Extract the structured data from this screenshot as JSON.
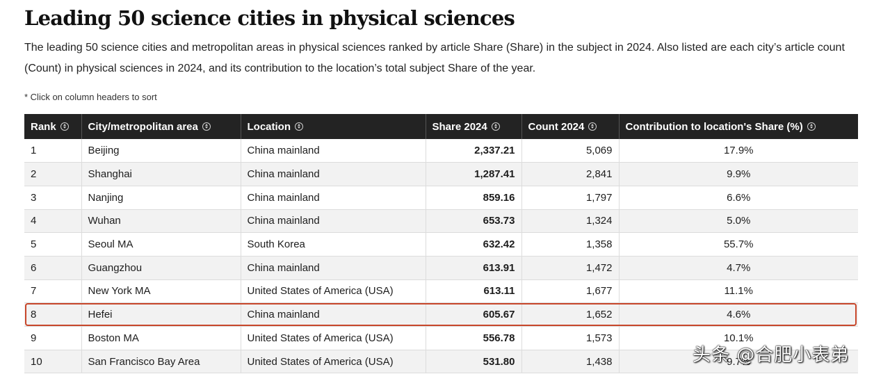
{
  "title": "Leading 50 science cities in physical sciences",
  "description": "The leading 50 science cities and metropolitan areas in physical sciences ranked by article Share (Share) in the subject in 2024. Also listed are each city’s article count (Count) in physical sciences in 2024, and its contribution to the location’s total subject Share of the year.",
  "note": "* Click on column headers to sort",
  "table": {
    "headers": [
      "Rank",
      "City/metropolitan area",
      "Location",
      "Share 2024",
      "Count 2024",
      "Contribution to location's Share (%)"
    ],
    "rows": [
      {
        "rank": "1",
        "city": "Beijing",
        "location": "China mainland",
        "share": "2,337.21",
        "count": "5,069",
        "contribution": "17.9%"
      },
      {
        "rank": "2",
        "city": "Shanghai",
        "location": "China mainland",
        "share": "1,287.41",
        "count": "2,841",
        "contribution": "9.9%"
      },
      {
        "rank": "3",
        "city": "Nanjing",
        "location": "China mainland",
        "share": "859.16",
        "count": "1,797",
        "contribution": "6.6%"
      },
      {
        "rank": "4",
        "city": "Wuhan",
        "location": "China mainland",
        "share": "653.73",
        "count": "1,324",
        "contribution": "5.0%"
      },
      {
        "rank": "5",
        "city": "Seoul MA",
        "location": "South Korea",
        "share": "632.42",
        "count": "1,358",
        "contribution": "55.7%"
      },
      {
        "rank": "6",
        "city": "Guangzhou",
        "location": "China mainland",
        "share": "613.91",
        "count": "1,472",
        "contribution": "4.7%"
      },
      {
        "rank": "7",
        "city": "New York MA",
        "location": "United States of America (USA)",
        "share": "613.11",
        "count": "1,677",
        "contribution": "11.1%"
      },
      {
        "rank": "8",
        "city": "Hefei",
        "location": "China mainland",
        "share": "605.67",
        "count": "1,652",
        "contribution": "4.6%"
      },
      {
        "rank": "9",
        "city": "Boston MA",
        "location": "United States of America (USA)",
        "share": "556.78",
        "count": "1,573",
        "contribution": "10.1%"
      },
      {
        "rank": "10",
        "city": "San Francisco Bay Area",
        "location": "United States of America (USA)",
        "share": "531.80",
        "count": "1,438",
        "contribution": "9.7%"
      }
    ],
    "highlighted_rank": "8"
  },
  "watermark": "头条 @合肥小表弟",
  "colors": {
    "header_bg": "#232323",
    "highlight": "#c8472b",
    "stripe": "#f2f2f2"
  },
  "icons": {
    "sort": "sort-arrows-icon"
  }
}
